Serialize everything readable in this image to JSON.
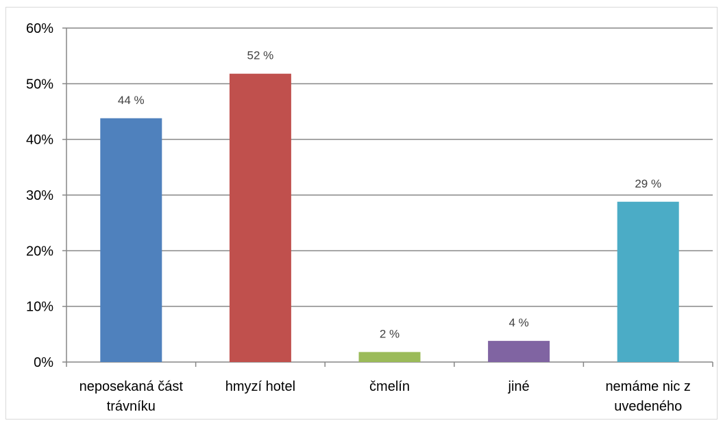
{
  "chart_data": {
    "type": "bar",
    "title": "",
    "xlabel": "",
    "ylabel": "",
    "ylim": [
      0,
      60
    ],
    "y_ticks": [
      "0%",
      "10%",
      "20%",
      "30%",
      "40%",
      "50%",
      "60%"
    ],
    "y_tick_values": [
      0,
      10,
      20,
      30,
      40,
      50,
      60
    ],
    "grid": true,
    "legend": "none",
    "categories": [
      [
        "neposekaná část",
        "trávníku"
      ],
      [
        "hmyzí hotel"
      ],
      [
        "čmelín"
      ],
      [
        "jiné"
      ],
      [
        "nemáme nic z",
        "uvedeného"
      ]
    ],
    "values": [
      43.8,
      51.8,
      1.8,
      3.8,
      28.8
    ],
    "data_labels": [
      "44 %",
      "52 %",
      "2 %",
      "4 %",
      "29 %"
    ],
    "colors": [
      "#4f81bd",
      "#c0504d",
      "#9bbb59",
      "#8064a2",
      "#4bacc6"
    ]
  }
}
